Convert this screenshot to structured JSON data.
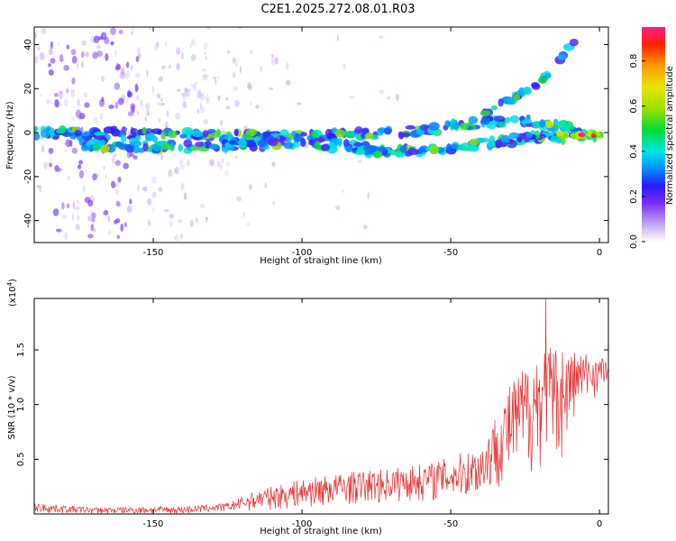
{
  "title": "C2E1.2025.272.08.01.R03",
  "chart_data": [
    {
      "id": "spectrogram",
      "type": "heatmap",
      "xlabel": "Height of straight line (km)",
      "ylabel": "Frequency (Hz)",
      "xlim": [
        -190,
        3
      ],
      "ylim": [
        -50,
        48
      ],
      "xticks": [
        -150,
        -100,
        -50,
        0
      ],
      "yticks": [
        -40,
        -20,
        0,
        20,
        40
      ],
      "xtick_labels": [
        "-150",
        "-100",
        "-50",
        "0"
      ],
      "ytick_labels": [
        "-40",
        "-20",
        "0",
        "20",
        "40"
      ],
      "colorbar": {
        "label": "Normalized spectral amplitude",
        "range": [
          0.0,
          0.95
        ],
        "ticks": [
          0.0,
          0.2,
          0.4,
          0.6,
          0.8
        ],
        "tick_labels": [
          "0.0",
          "0.2",
          "0.4",
          "0.6",
          "0.8"
        ],
        "colors": [
          "#ffffff",
          "#c2a8f2",
          "#7a2cf2",
          "#2a18ff",
          "#0090ff",
          "#00e6e6",
          "#00dc38",
          "#9fe000",
          "#e6e600",
          "#ff9a00",
          "#ff2000",
          "#ff1c8c"
        ]
      },
      "bands": [
        {
          "name": "upper-band",
          "x": [
            -190,
            -150,
            -100,
            -60,
            -30,
            -10,
            0
          ],
          "freq": [
            0,
            -1,
            -2,
            1,
            6,
            2,
            -1
          ]
        },
        {
          "name": "lower-band",
          "x": [
            -175,
            -140,
            -100,
            -70,
            -40,
            -20,
            -5
          ],
          "freq": [
            -5,
            -7,
            -4,
            -9,
            -5,
            -2,
            -2
          ]
        },
        {
          "name": "rising-streak",
          "x": [
            -40,
            -20,
            -8
          ],
          "freq": [
            8,
            22,
            42
          ]
        }
      ],
      "peak": {
        "x": -6,
        "freq": -1,
        "amplitude": 0.95
      }
    },
    {
      "id": "snr",
      "type": "line",
      "xlabel": "Height of straight line (km)",
      "ylabel": "SNR (10 * v/v)",
      "multiplier_label": "(x10",
      "multiplier_exp": "4",
      "multiplier_close": ")",
      "xlim": [
        -190,
        3
      ],
      "ylim": [
        0,
        1.97
      ],
      "xticks": [
        -150,
        -100,
        -50,
        0
      ],
      "yticks": [
        0.5,
        1.0,
        1.5
      ],
      "xtick_labels": [
        "-150",
        "-100",
        "-50",
        "0"
      ],
      "ytick_labels": [
        "0.5",
        "1.0",
        "1.5"
      ],
      "series": [
        {
          "name": "SNR",
          "color": "#e83030",
          "envelope_x": [
            -190,
            -170,
            -140,
            -125,
            -115,
            -100,
            -85,
            -70,
            -55,
            -40,
            -30,
            -20,
            -12,
            -8,
            -5,
            0,
            3
          ],
          "envelope_lo": [
            0.01,
            0.0,
            0.0,
            0.02,
            0.03,
            0.05,
            0.08,
            0.1,
            0.12,
            0.15,
            0.3,
            0.4,
            0.5,
            0.9,
            1.0,
            1.1,
            1.15
          ],
          "envelope_hi": [
            0.1,
            0.06,
            0.07,
            0.1,
            0.22,
            0.32,
            0.38,
            0.42,
            0.48,
            0.62,
            1.2,
            1.55,
            1.55,
            1.5,
            1.48,
            1.45,
            1.45
          ],
          "max": {
            "x": -18,
            "y": 1.97
          }
        }
      ]
    }
  ]
}
